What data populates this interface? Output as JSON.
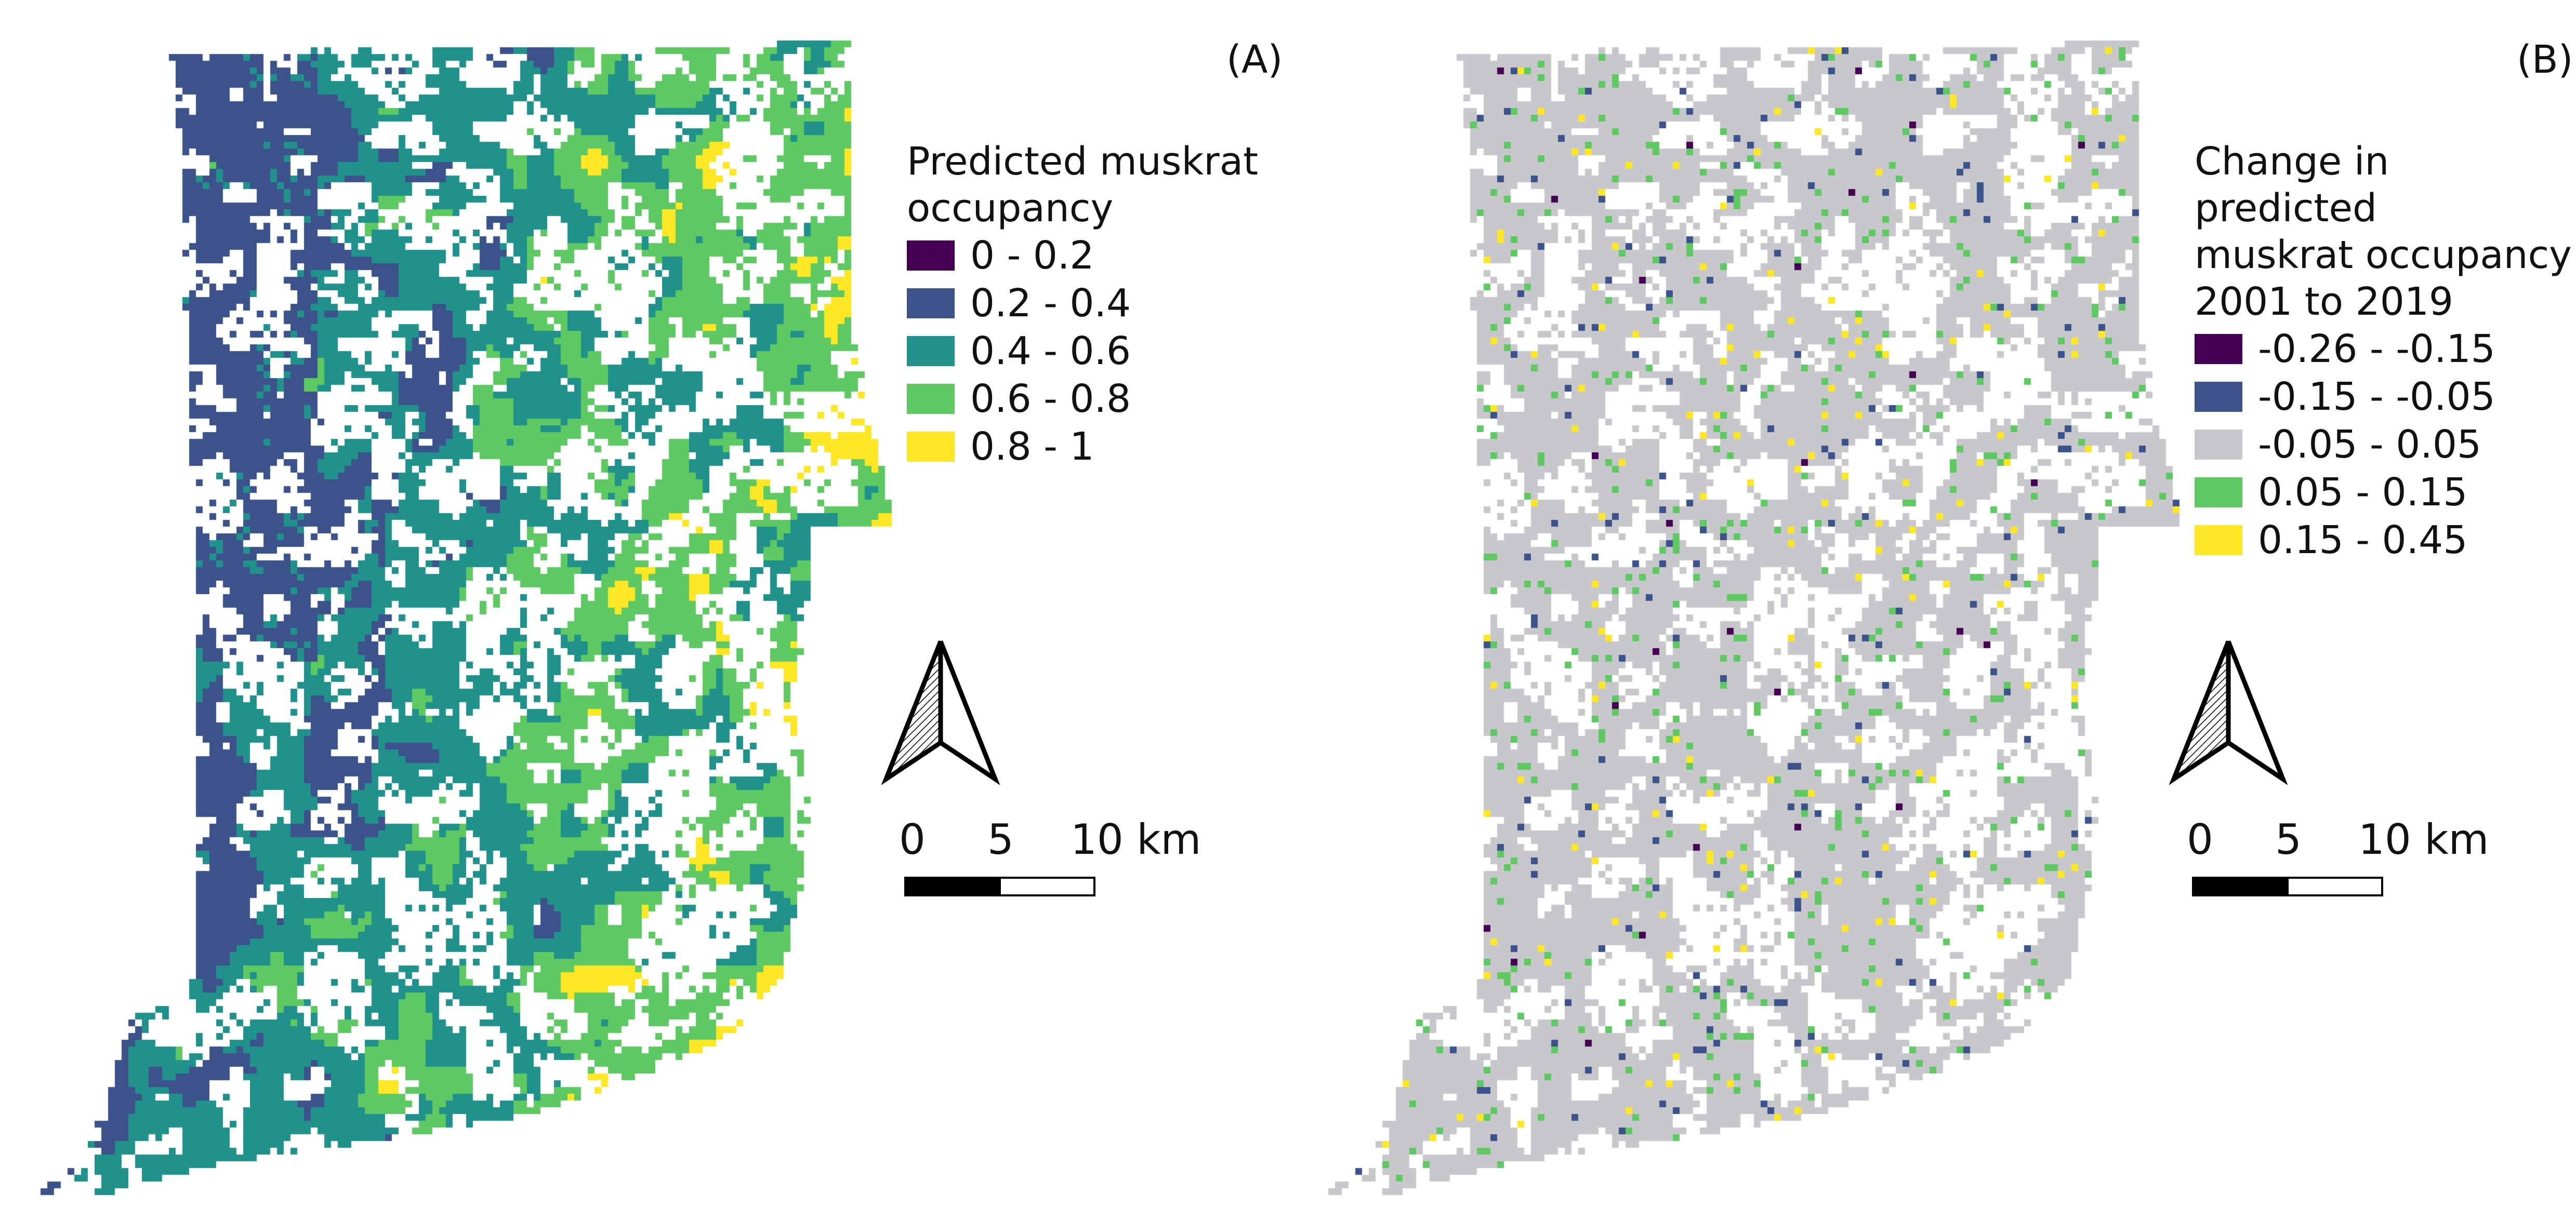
{
  "panels": [
    {
      "id": "A",
      "label": "(A)",
      "legend_title": "Predicted muskrat\noccupancy",
      "legend": [
        {
          "label": "0 - 0.2",
          "color": "#440154"
        },
        {
          "label": "0.2 - 0.4",
          "color": "#3b528b"
        },
        {
          "label": "0.4 - 0.6",
          "color": "#21918c"
        },
        {
          "label": "0.6 - 0.8",
          "color": "#5ec962"
        },
        {
          "label": "0.8 - 1",
          "color": "#fde725"
        }
      ],
      "scale": {
        "tick_0": "0",
        "tick_1": "5",
        "tick_2": "10 km"
      },
      "north_arrow_icon": "north-arrow-icon"
    },
    {
      "id": "B",
      "label": "(B)",
      "legend_title": "Change in predicted\nmuskrat occupancy\n2001 to 2019",
      "legend": [
        {
          "label": "-0.26 - -0.15",
          "color": "#440154"
        },
        {
          "label": "-0.15 - -0.05",
          "color": "#3b528b"
        },
        {
          "label": "-0.05 - 0.05",
          "color": "#c8c8cc"
        },
        {
          "label": "0.05 - 0.15",
          "color": "#5ec962"
        },
        {
          "label": "0.15 - 0.45",
          "color": "#fde725"
        }
      ],
      "scale": {
        "tick_0": "0",
        "tick_1": "5",
        "tick_2": "10 km"
      },
      "north_arrow_icon": "north-arrow-icon"
    }
  ]
}
